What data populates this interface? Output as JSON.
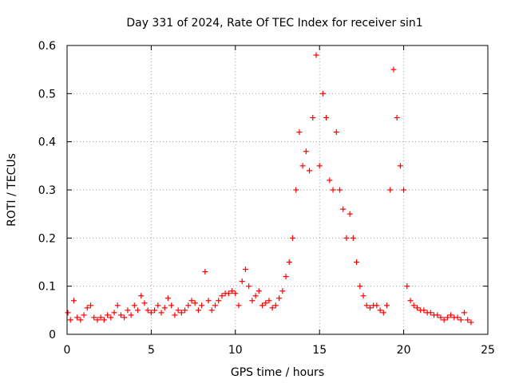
{
  "chart_data": {
    "type": "scatter",
    "title": "Day 331 of 2024, Rate Of TEC Index for receiver sin1",
    "xlabel": "GPS time / hours",
    "ylabel": "ROTI / TECUs",
    "xlim": [
      0,
      25
    ],
    "ylim": [
      0,
      0.6
    ],
    "xticks": [
      "0",
      "5",
      "10",
      "15",
      "20",
      "25"
    ],
    "yticks": [
      "0",
      "0.1",
      "0.2",
      "0.3",
      "0.4",
      "0.5",
      "0.6"
    ],
    "grid": true,
    "marker": "+",
    "color": "#ff0000",
    "series": [
      {
        "x": [
          0.05,
          0.2,
          0.4,
          0.6,
          0.8,
          1.0,
          1.2,
          1.4,
          1.6,
          1.8,
          2.0,
          2.2,
          2.4,
          2.6,
          2.8,
          3.0,
          3.2,
          3.4,
          3.6,
          3.8,
          4.0,
          4.2,
          4.4,
          4.6,
          4.8,
          5.0,
          5.2,
          5.4,
          5.6,
          5.8,
          6.0,
          6.2,
          6.4,
          6.6,
          6.8,
          7.0,
          7.2,
          7.4,
          7.6,
          7.8,
          8.0,
          8.2,
          8.4,
          8.6,
          8.8,
          9.0,
          9.2,
          9.4,
          9.6,
          9.8,
          10.0,
          10.2,
          10.4,
          10.6,
          10.8,
          11.0,
          11.2,
          11.4,
          11.6,
          11.8,
          12.0,
          12.2,
          12.4,
          12.6,
          12.8,
          13.0,
          13.2,
          13.4,
          13.6,
          13.8,
          14.0,
          14.2,
          14.4,
          14.6,
          14.8,
          15.0,
          15.2,
          15.4,
          15.6,
          15.8,
          16.0,
          16.2,
          16.4,
          16.6,
          16.8,
          17.0,
          17.2,
          17.4,
          17.6,
          17.8,
          18.0,
          18.2,
          18.4,
          18.6,
          18.8,
          19.0,
          19.2,
          19.4,
          19.6,
          19.8,
          20.0,
          20.2,
          20.4,
          20.6,
          20.8,
          21.0,
          21.2,
          21.4,
          21.6,
          21.8,
          22.0,
          22.2,
          22.4,
          22.6,
          22.8,
          23.0,
          23.2,
          23.4,
          23.6,
          23.8,
          24.0
        ],
        "y": [
          0.045,
          0.03,
          0.07,
          0.035,
          0.03,
          0.04,
          0.055,
          0.06,
          0.035,
          0.03,
          0.035,
          0.03,
          0.04,
          0.035,
          0.045,
          0.06,
          0.04,
          0.035,
          0.05,
          0.04,
          0.06,
          0.05,
          0.08,
          0.065,
          0.05,
          0.045,
          0.05,
          0.06,
          0.045,
          0.055,
          0.075,
          0.06,
          0.04,
          0.05,
          0.045,
          0.05,
          0.06,
          0.07,
          0.065,
          0.05,
          0.06,
          0.13,
          0.07,
          0.05,
          0.06,
          0.07,
          0.08,
          0.085,
          0.085,
          0.09,
          0.085,
          0.06,
          0.11,
          0.135,
          0.1,
          0.07,
          0.08,
          0.09,
          0.06,
          0.065,
          0.07,
          0.055,
          0.06,
          0.075,
          0.09,
          0.12,
          0.15,
          0.2,
          0.3,
          0.42,
          0.35,
          0.38,
          0.34,
          0.45,
          0.58,
          0.35,
          0.5,
          0.45,
          0.32,
          0.3,
          0.42,
          0.3,
          0.26,
          0.2,
          0.25,
          0.2,
          0.15,
          0.1,
          0.08,
          0.06,
          0.055,
          0.06,
          0.06,
          0.05,
          0.045,
          0.06,
          0.3,
          0.55,
          0.45,
          0.35,
          0.3,
          0.1,
          0.07,
          0.06,
          0.055,
          0.05,
          0.05,
          0.045,
          0.045,
          0.04,
          0.04,
          0.035,
          0.03,
          0.035,
          0.04,
          0.035,
          0.035,
          0.03,
          0.045,
          0.03,
          0.025
        ]
      }
    ]
  }
}
